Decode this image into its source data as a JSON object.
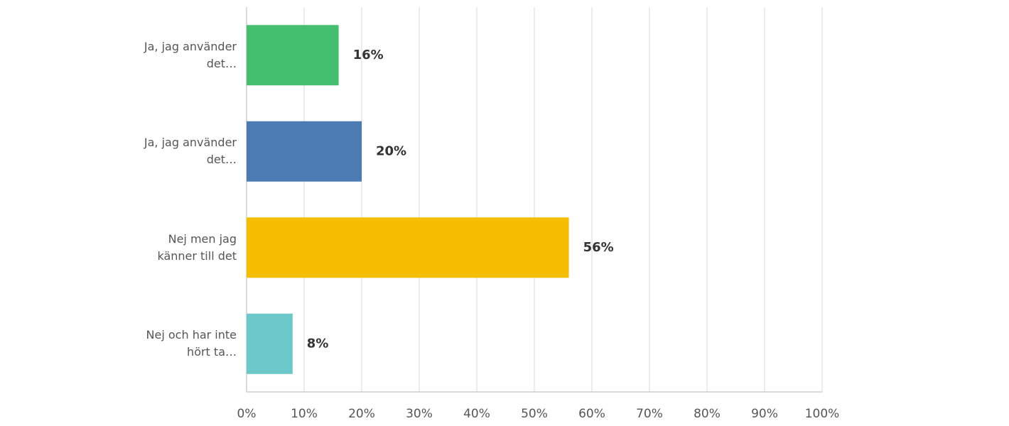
{
  "chart_data": {
    "type": "hbar",
    "categories": [
      "Ja, jag använder det…",
      "Ja, jag använder det…",
      "Nej men jag känner till det",
      "Nej och har inte hört ta…"
    ],
    "values": [
      16,
      20,
      56,
      8
    ],
    "value_labels": [
      "16%",
      "20%",
      "56%",
      "8%"
    ],
    "colors": [
      "#43bf6e",
      "#4c7ab3",
      "#f5be00",
      "#6bc9ca"
    ],
    "xlim": [
      0,
      100
    ],
    "xticks": [
      {
        "value": 0,
        "label": "0%"
      },
      {
        "value": 10,
        "label": "10%"
      },
      {
        "value": 20,
        "label": "20%"
      },
      {
        "value": 30,
        "label": "30%"
      },
      {
        "value": 40,
        "label": "40%"
      },
      {
        "value": 50,
        "label": "50%"
      },
      {
        "value": 60,
        "label": "60%"
      },
      {
        "value": 70,
        "label": "70%"
      },
      {
        "value": 80,
        "label": "80%"
      },
      {
        "value": 90,
        "label": "90%"
      },
      {
        "value": 100,
        "label": "100%"
      }
    ],
    "grid": true
  }
}
